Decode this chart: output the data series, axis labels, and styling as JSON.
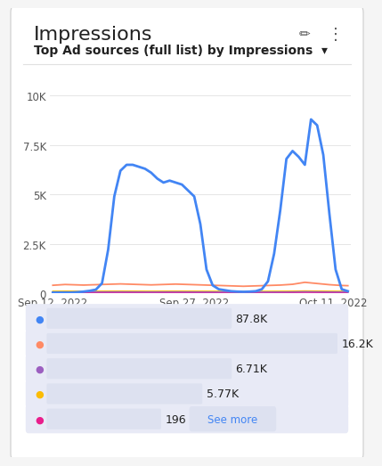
{
  "title": "Impressions",
  "subtitle": "Top Ad sources (full list) by Impressions  ▾",
  "bg_color": "#f5f5f5",
  "card_color": "#ffffff",
  "x_labels": [
    "Sep 12, 2022",
    "Sep 27, 2022",
    "Oct 11, 2022"
  ],
  "y_ticks": [
    0,
    2500,
    5000,
    7500,
    10000
  ],
  "y_tick_labels": [
    "0",
    "2.5K",
    "5K",
    "7.5K",
    "10K"
  ],
  "ylim": [
    0,
    10800
  ],
  "blue_line": [
    30,
    30,
    30,
    30,
    50,
    80,
    120,
    180,
    500,
    2200,
    4900,
    6200,
    6500,
    6500,
    6400,
    6300,
    6100,
    5800,
    5600,
    5700,
    5600,
    5500,
    5200,
    4900,
    3500,
    1200,
    400,
    200,
    150,
    100,
    80,
    70,
    80,
    100,
    200,
    600,
    2000,
    4200,
    6800,
    7200,
    6900,
    6500,
    8800,
    8500,
    7000,
    4000,
    1200,
    200,
    100
  ],
  "orange_line": [
    400,
    420,
    440,
    430,
    420,
    410,
    420,
    430,
    440,
    450,
    460,
    470,
    460,
    450,
    440,
    430,
    420,
    430,
    440,
    450,
    460,
    450,
    440,
    430,
    420,
    410,
    400,
    390,
    380,
    370,
    360,
    350,
    360,
    370,
    380,
    390,
    400,
    410,
    430,
    450,
    500,
    550,
    520,
    490,
    460,
    430,
    410,
    390,
    380
  ],
  "purple_line": [
    60,
    62,
    64,
    63,
    62,
    61,
    62,
    63,
    64,
    65,
    66,
    67,
    66,
    65,
    64,
    63,
    62,
    63,
    64,
    65,
    66,
    65,
    64,
    63,
    62,
    61,
    60,
    59,
    58,
    57,
    56,
    55,
    56,
    57,
    58,
    59,
    60,
    61,
    63,
    65,
    70,
    75,
    72,
    69,
    66,
    63,
    61,
    59,
    58
  ],
  "yellow_line": [
    100,
    102,
    104,
    103,
    102,
    101,
    102,
    103,
    104,
    105,
    106,
    107,
    106,
    105,
    104,
    103,
    102,
    103,
    104,
    105,
    106,
    105,
    104,
    103,
    102,
    101,
    100,
    99,
    98,
    97,
    96,
    95,
    96,
    97,
    98,
    99,
    100,
    101,
    103,
    105,
    110,
    115,
    112,
    109,
    106,
    103,
    101,
    99,
    98
  ],
  "red_line": [
    30,
    31,
    32,
    31,
    30,
    29,
    30,
    31,
    32,
    33,
    34,
    35,
    34,
    33,
    32,
    31,
    30,
    31,
    32,
    33,
    34,
    33,
    32,
    31,
    30,
    29,
    28,
    27,
    26,
    25,
    24,
    23,
    24,
    25,
    26,
    27,
    28,
    29,
    31,
    33,
    36,
    39,
    37,
    35,
    33,
    31,
    29,
    27,
    26
  ],
  "line_colors": [
    "#4285F4",
    "#FF8A65",
    "#9C5FC0",
    "#FBBC04",
    "#E91E8C"
  ],
  "line_widths": [
    2.0,
    1.3,
    1.0,
    1.0,
    1.0
  ],
  "legend_items": [
    {
      "color": "#4285F4",
      "value": "87.8K",
      "bar_pct": 0.62
    },
    {
      "color": "#FF8A65",
      "value": "16.2K",
      "bar_pct": 0.98
    },
    {
      "color": "#9C5FC0",
      "value": "6.71K",
      "bar_pct": 0.62
    },
    {
      "color": "#FBBC04",
      "value": "5.77K",
      "bar_pct": 0.52
    },
    {
      "color": "#E91E8C",
      "value": "196",
      "bar_pct": 0.38
    }
  ],
  "legend_outer_color": "#e8eaf6",
  "legend_inner_color": "#dde1f0",
  "see_more_color": "#4285F4",
  "see_more_bg": "#dde1f0",
  "grid_color": "#e0e0e0",
  "title_fontsize": 16,
  "subtitle_fontsize": 10,
  "tick_fontsize": 8.5
}
